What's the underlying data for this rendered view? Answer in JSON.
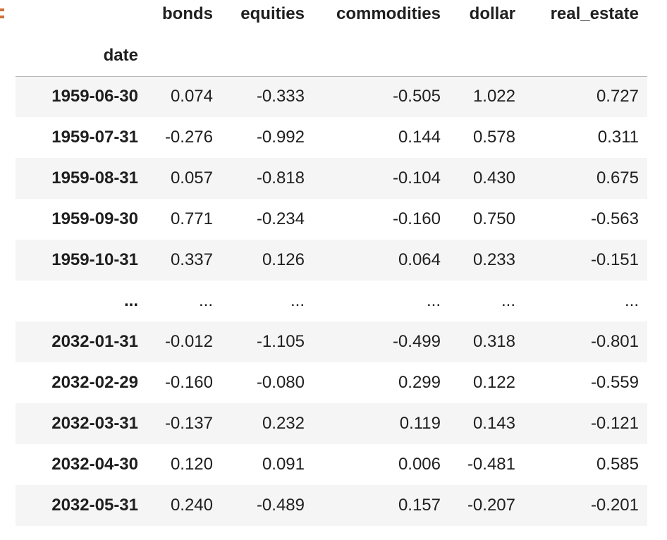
{
  "table": {
    "columns": [
      "bonds",
      "equities",
      "commodities",
      "dollar",
      "real_estate"
    ],
    "index_name": "date",
    "rows": [
      {
        "index": "1959-06-30",
        "values": [
          "0.074",
          "-0.333",
          "-0.505",
          "1.022",
          "0.727"
        ]
      },
      {
        "index": "1959-07-31",
        "values": [
          "-0.276",
          "-0.992",
          "0.144",
          "0.578",
          "0.311"
        ]
      },
      {
        "index": "1959-08-31",
        "values": [
          "0.057",
          "-0.818",
          "-0.104",
          "0.430",
          "0.675"
        ]
      },
      {
        "index": "1959-09-30",
        "values": [
          "0.771",
          "-0.234",
          "-0.160",
          "0.750",
          "-0.563"
        ]
      },
      {
        "index": "1959-10-31",
        "values": [
          "0.337",
          "0.126",
          "0.064",
          "0.233",
          "-0.151"
        ]
      },
      {
        "index": "...",
        "values": [
          "...",
          "...",
          "...",
          "...",
          "..."
        ]
      },
      {
        "index": "2032-01-31",
        "values": [
          "-0.012",
          "-1.105",
          "-0.499",
          "0.318",
          "-0.801"
        ]
      },
      {
        "index": "2032-02-29",
        "values": [
          "-0.160",
          "-0.080",
          "0.299",
          "0.122",
          "-0.559"
        ]
      },
      {
        "index": "2032-03-31",
        "values": [
          "-0.137",
          "0.232",
          "0.119",
          "0.143",
          "-0.121"
        ]
      },
      {
        "index": "2032-04-30",
        "values": [
          "0.120",
          "0.091",
          "0.006",
          "-0.481",
          "0.585"
        ]
      },
      {
        "index": "2032-05-31",
        "values": [
          "0.240",
          "-0.489",
          "0.157",
          "-0.207",
          "-0.201"
        ]
      }
    ]
  },
  "colors": {
    "cell_marker": "#d0703a",
    "row_stripe": "#f5f5f5",
    "header_rule": "#b8b8b8"
  }
}
